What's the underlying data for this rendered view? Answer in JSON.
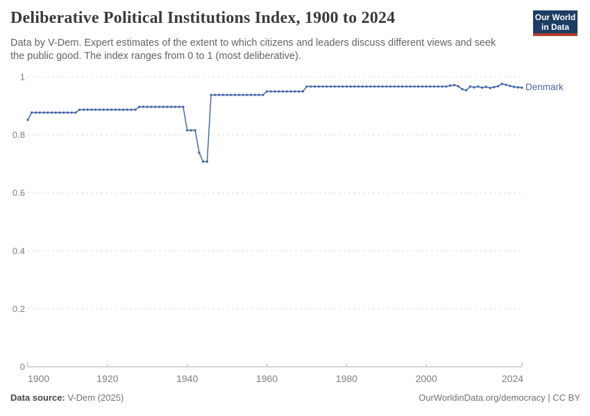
{
  "header": {
    "title": "Deliberative Political Institutions Index, 1900 to 2024",
    "subtitle_lines": [
      "Data by V-Dem. Expert estimates of the extent to which citizens and leaders discuss different views and seek",
      "the public good. The index ranges from 0 to 1 (most deliberative)."
    ],
    "logo": {
      "line1": "Our World",
      "line2": "in Data",
      "bg_color": "#1d3d63",
      "accent_color": "#b93a2c"
    }
  },
  "chart_data": {
    "type": "line",
    "title": "Deliberative Political Institutions Index, 1900 to 2024",
    "xlabel": "",
    "ylabel": "",
    "xlim": [
      1900,
      2024
    ],
    "ylim": [
      0,
      1
    ],
    "x_ticks": [
      1900,
      1920,
      1940,
      1960,
      1980,
      2000,
      2024
    ],
    "y_ticks": [
      0,
      0.2,
      0.4,
      0.6,
      0.8,
      1
    ],
    "grid": "horizontal-dashed",
    "legend_position": "right-of-line-end",
    "marker": "circle-every-year",
    "colors": {
      "line": "#4767a8",
      "grid": "#dcdcdc",
      "axis": "#adadad",
      "axis_text": "#7d7d7d"
    },
    "series": [
      {
        "name": "Denmark",
        "color": "#4767a8",
        "start_year": 1900,
        "end_year": 2024,
        "values": [
          0.852,
          0.877,
          0.877,
          0.877,
          0.877,
          0.877,
          0.877,
          0.877,
          0.877,
          0.877,
          0.877,
          0.877,
          0.877,
          0.887,
          0.887,
          0.887,
          0.887,
          0.887,
          0.887,
          0.887,
          0.887,
          0.887,
          0.887,
          0.887,
          0.887,
          0.887,
          0.887,
          0.887,
          0.897,
          0.897,
          0.897,
          0.897,
          0.897,
          0.897,
          0.897,
          0.897,
          0.897,
          0.897,
          0.897,
          0.897,
          0.816,
          0.816,
          0.816,
          0.739,
          0.708,
          0.708,
          0.938,
          0.938,
          0.938,
          0.938,
          0.938,
          0.938,
          0.938,
          0.938,
          0.938,
          0.938,
          0.938,
          0.938,
          0.938,
          0.938,
          0.95,
          0.95,
          0.95,
          0.95,
          0.95,
          0.95,
          0.95,
          0.95,
          0.95,
          0.95,
          0.967,
          0.967,
          0.967,
          0.967,
          0.967,
          0.967,
          0.967,
          0.967,
          0.967,
          0.967,
          0.967,
          0.967,
          0.967,
          0.967,
          0.967,
          0.967,
          0.967,
          0.967,
          0.967,
          0.967,
          0.967,
          0.967,
          0.967,
          0.967,
          0.967,
          0.967,
          0.967,
          0.967,
          0.967,
          0.967,
          0.967,
          0.967,
          0.967,
          0.967,
          0.967,
          0.967,
          0.97,
          0.972,
          0.968,
          0.958,
          0.954,
          0.967,
          0.964,
          0.967,
          0.963,
          0.966,
          0.962,
          0.965,
          0.968,
          0.976,
          0.973,
          0.969,
          0.966,
          0.964,
          0.963
        ]
      }
    ]
  },
  "footer": {
    "source_label": "Data source:",
    "source_value": "V-Dem (2025)",
    "credit": "OurWorldinData.org/democracy | CC BY"
  }
}
